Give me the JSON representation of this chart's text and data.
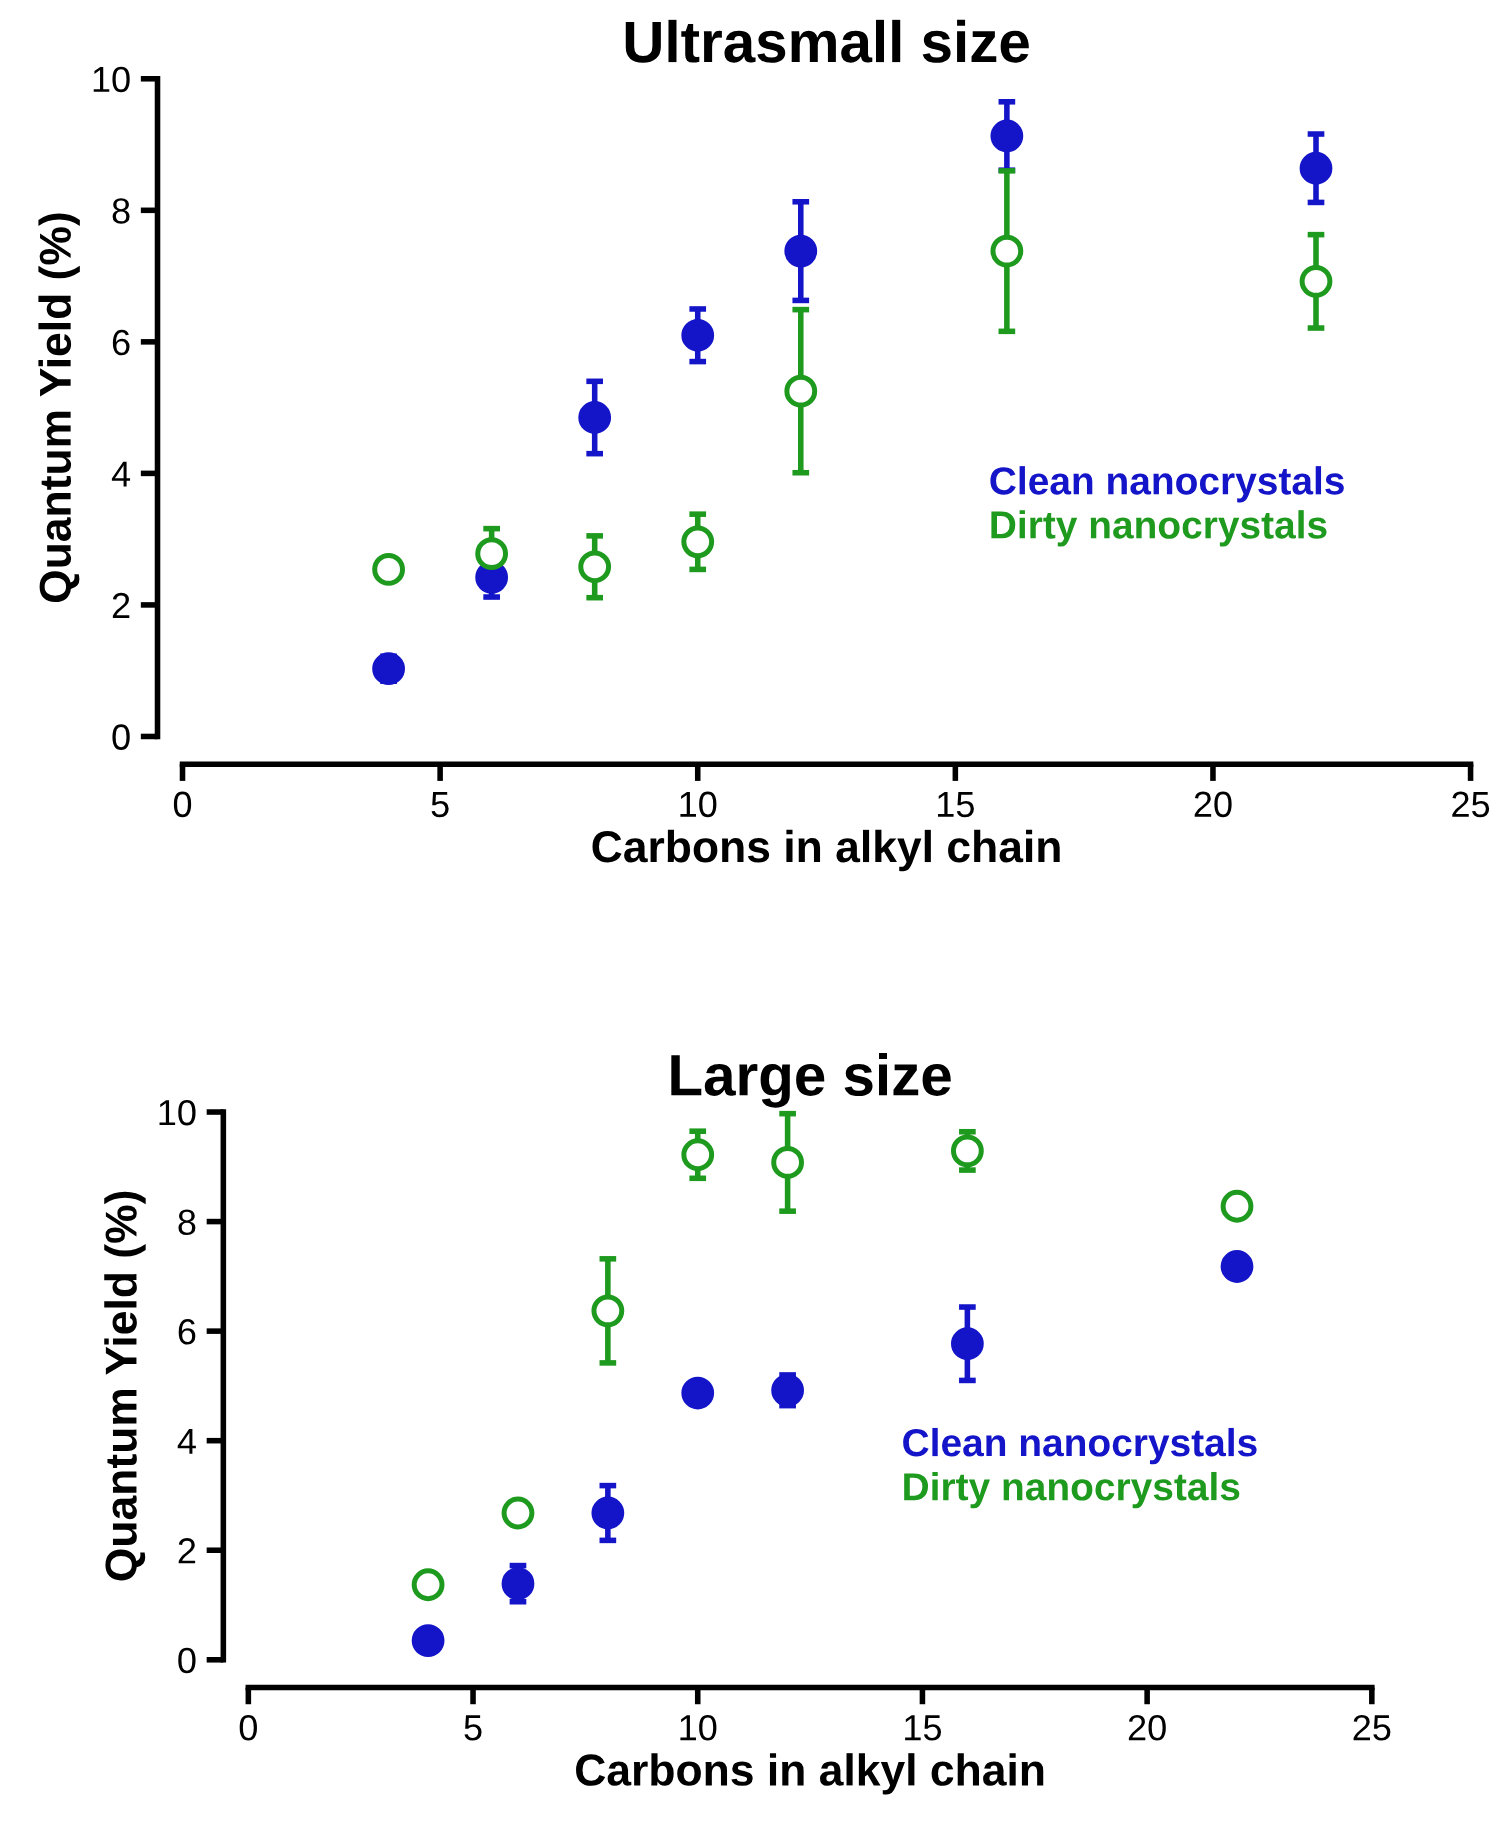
{
  "chart_data": [
    {
      "type": "scatter",
      "title": "Ultrasmall size",
      "xlabel": "Carbons in alkyl chain",
      "ylabel": "Quantum Yield (%)",
      "xlim": [
        0,
        25
      ],
      "xticks": [
        0,
        5,
        10,
        15,
        20,
        25
      ],
      "ylim": [
        0,
        10
      ],
      "yticks": [
        0,
        2,
        4,
        6,
        8,
        10
      ],
      "grid": false,
      "legend": "right",
      "series": [
        {
          "name": "Clean nanocrystals",
          "color": "#1414c8",
          "marker": "circle",
          "x": [
            4,
            6,
            8,
            10,
            12,
            16,
            22
          ],
          "values": [
            1.03,
            2.42,
            4.85,
            6.1,
            7.38,
            9.13,
            8.64
          ],
          "errors": [
            0.19,
            0.3,
            0.55,
            0.4,
            0.75,
            0.52,
            0.52
          ]
        },
        {
          "name": "Dirty nanocrystals",
          "color": "#1e9a1e",
          "marker": "open circle",
          "x": [
            4,
            6,
            8,
            10,
            12,
            16,
            22
          ],
          "values": [
            2.54,
            2.78,
            2.58,
            2.96,
            5.25,
            7.38,
            6.92
          ],
          "errors": [
            null,
            0.38,
            0.47,
            0.42,
            1.24,
            1.22,
            0.71
          ]
        }
      ]
    },
    {
      "type": "scatter",
      "title": "Large size",
      "xlabel": "Carbons in alkyl chain",
      "ylabel": "Quantum Yield (%)",
      "xlim": [
        0,
        25
      ],
      "xticks": [
        0,
        5,
        10,
        15,
        20,
        25
      ],
      "ylim": [
        0,
        10
      ],
      "yticks": [
        0,
        2,
        4,
        6,
        8,
        10
      ],
      "grid": false,
      "legend": "right",
      "series": [
        {
          "name": "Clean nanocrystals",
          "color": "#1414c8",
          "marker": "circle",
          "x": [
            4,
            6,
            8,
            10,
            12,
            16,
            22
          ],
          "values": [
            0.35,
            1.39,
            2.68,
            4.87,
            4.92,
            5.77,
            7.18
          ],
          "errors": [
            null,
            0.33,
            0.5,
            null,
            0.28,
            0.67,
            null
          ]
        },
        {
          "name": "Dirty nanocrystals",
          "color": "#1e9a1e",
          "marker": "open circle",
          "x": [
            4,
            6,
            8,
            10,
            12,
            16,
            22
          ],
          "values": [
            1.37,
            2.68,
            6.37,
            9.22,
            9.08,
            9.29,
            8.28
          ],
          "errors": [
            null,
            null,
            0.95,
            0.43,
            0.89,
            0.35,
            null
          ]
        }
      ]
    }
  ]
}
